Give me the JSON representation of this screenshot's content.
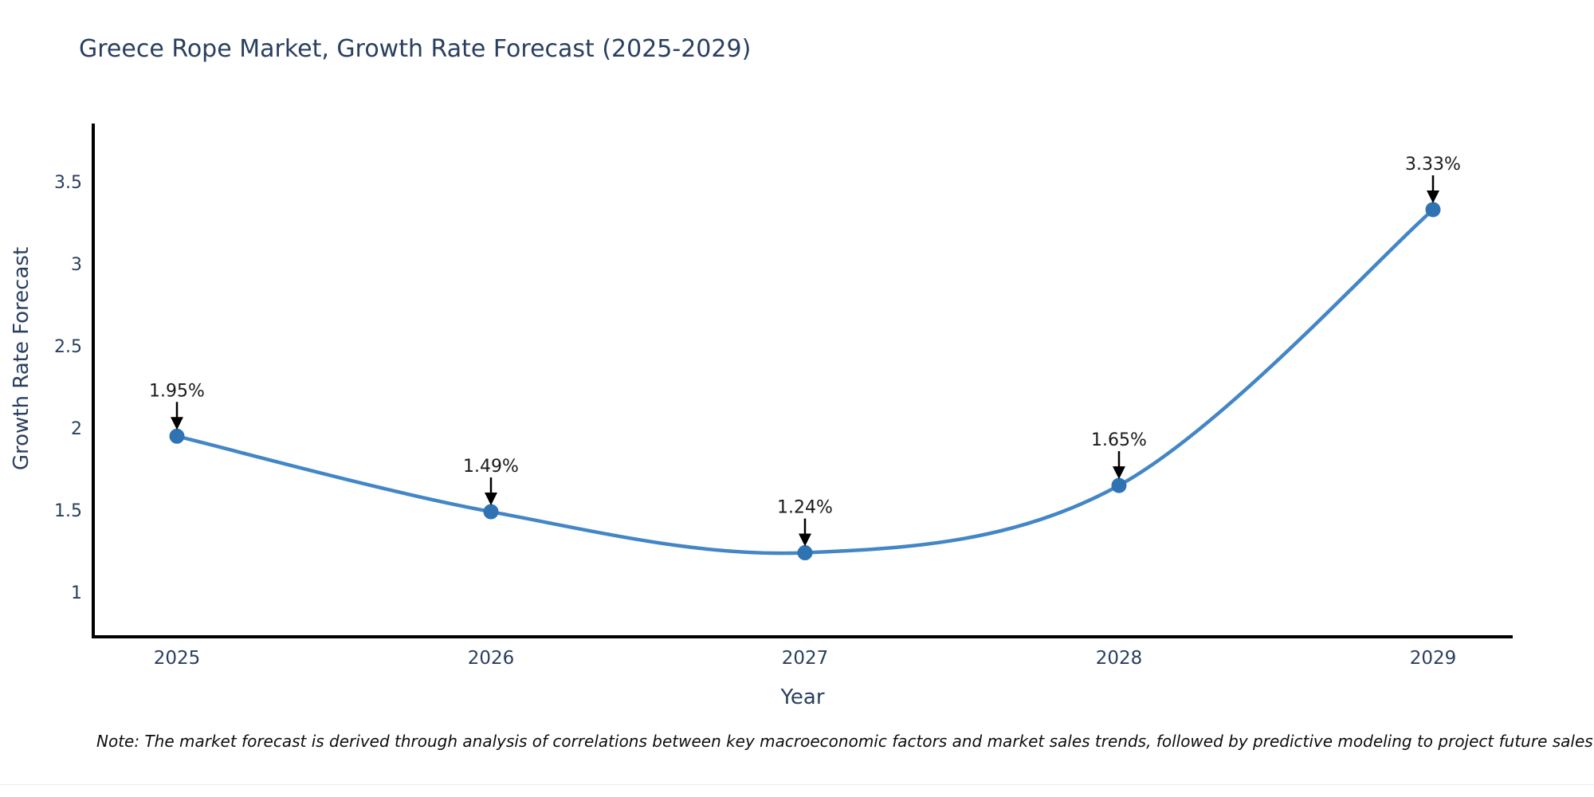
{
  "title": "Greece Rope Market, Growth Rate Forecast (2025-2029)",
  "note": "Note: The market forecast is derived through analysis of correlations between key macroeconomic factors and market sales trends, followed by predictive modeling to project future sales",
  "chart_data": {
    "type": "line",
    "line_shape": "spline",
    "title": "Greece Rope Market, Growth Rate Forecast (2025-2029)",
    "xlabel": "Year",
    "ylabel": "Growth Rate Forecast",
    "x": [
      2025,
      2026,
      2027,
      2028,
      2029
    ],
    "y": [
      1.95,
      1.49,
      1.24,
      1.65,
      3.33
    ],
    "point_labels": [
      "1.95%",
      "1.49%",
      "1.24%",
      "1.65%",
      "3.33%"
    ],
    "x_tick_labels": [
      "2025",
      "2026",
      "2027",
      "2028",
      "2029"
    ],
    "y_tick_values": [
      3.5,
      3.0,
      2.5,
      2.0,
      1.5,
      1.0
    ],
    "y_tick_labels": [
      "3.5",
      "3",
      "2.5",
      "2",
      "1.5",
      "1"
    ],
    "ylim": [
      0.73,
      3.85
    ],
    "grid": false,
    "legend_position": "none",
    "markers": true,
    "annotations_have_arrows": true,
    "colors": {
      "line": "#4386c6",
      "marker": "#2f73b2",
      "axis_line": "#000000",
      "tick_text": "#2a3f5f",
      "title_text": "#2a3f5f",
      "axis_title_text": "#2a3f5f",
      "annotation_text": "#1a1a1a",
      "annotation_arrow": "#000000",
      "background": "#ffffff"
    }
  }
}
